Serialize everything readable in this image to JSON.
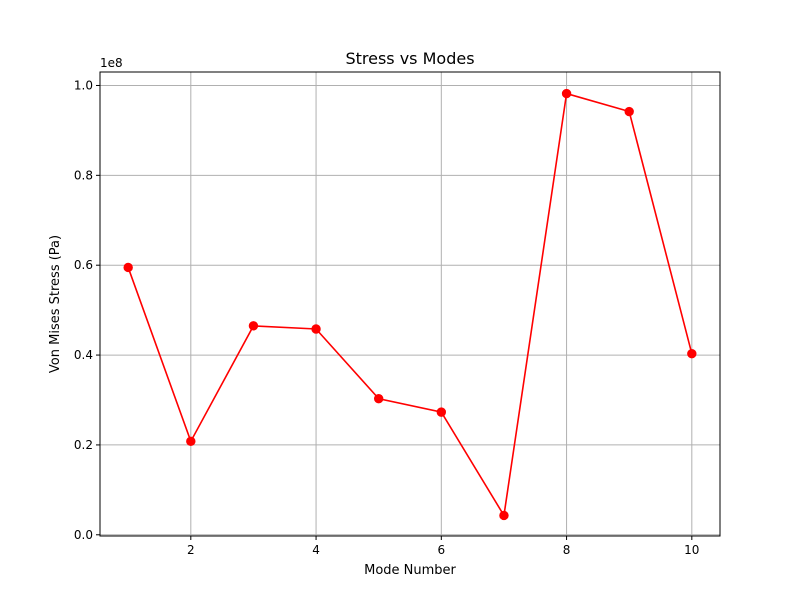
{
  "chart_data": {
    "type": "line",
    "title": "Stress vs Modes",
    "xlabel": "Mode Number",
    "ylabel": "Von Mises Stress (Pa)",
    "y_offset_label": "1e8",
    "y_scale_factor": 100000000,
    "xlim": [
      0.55,
      10.45
    ],
    "ylim": [
      -0.0027,
      1.03
    ],
    "x_ticks": [
      2,
      4,
      6,
      8,
      10
    ],
    "x_tick_labels": [
      "2",
      "4",
      "6",
      "8",
      "10"
    ],
    "y_ticks": [
      0.0,
      0.2,
      0.4,
      0.6,
      0.8,
      1.0
    ],
    "y_tick_labels": [
      "0.0",
      "0.2",
      "0.4",
      "0.6",
      "0.8",
      "1.0"
    ],
    "grid": true,
    "series": [
      {
        "color": "#ff0000",
        "marker": "circle",
        "x": [
          1,
          2,
          3,
          4,
          5,
          6,
          7,
          8,
          9,
          10
        ],
        "y": [
          59500000,
          20800000,
          46500000,
          45800000,
          30300000,
          27300000,
          4300000,
          98200000,
          94200000,
          40300000
        ]
      }
    ]
  }
}
